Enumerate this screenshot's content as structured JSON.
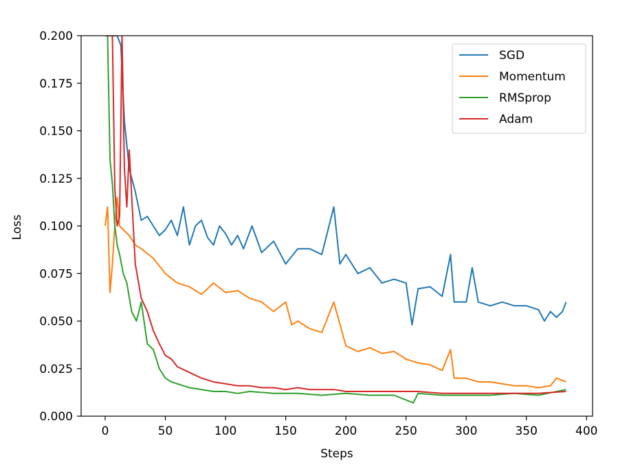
{
  "chart_data": {
    "type": "line",
    "title": "",
    "xlabel": "Steps",
    "ylabel": "Loss",
    "xlim": [
      -20,
      405
    ],
    "ylim": [
      0.0,
      0.2
    ],
    "xticks": [
      0,
      50,
      100,
      150,
      200,
      250,
      300,
      350,
      400
    ],
    "xtick_labels": [
      "0",
      "50",
      "100",
      "150",
      "200",
      "250",
      "300",
      "350",
      "400"
    ],
    "yticks": [
      0.0,
      0.025,
      0.05,
      0.075,
      0.1,
      0.125,
      0.15,
      0.175,
      0.2
    ],
    "ytick_labels": [
      "0.000",
      "0.025",
      "0.050",
      "0.075",
      "0.100",
      "0.125",
      "0.150",
      "0.175",
      "0.200"
    ],
    "grid": false,
    "legend_position": "top-right",
    "series": [
      {
        "name": "SGD",
        "color": "#1f77b4",
        "x": [
          0,
          5,
          10,
          13,
          16,
          20,
          25,
          30,
          35,
          40,
          45,
          50,
          55,
          60,
          65,
          70,
          75,
          80,
          85,
          90,
          95,
          100,
          105,
          110,
          115,
          122,
          130,
          140,
          150,
          160,
          170,
          180,
          190,
          195,
          200,
          210,
          220,
          230,
          240,
          250,
          255,
          260,
          270,
          280,
          287,
          290,
          300,
          305,
          310,
          320,
          330,
          340,
          350,
          360,
          365,
          370,
          375,
          380,
          383
        ],
        "y": [
          0.2,
          0.2,
          0.2,
          0.195,
          0.155,
          0.13,
          0.118,
          0.103,
          0.105,
          0.1,
          0.095,
          0.098,
          0.103,
          0.095,
          0.11,
          0.09,
          0.1,
          0.103,
          0.094,
          0.09,
          0.1,
          0.096,
          0.09,
          0.095,
          0.088,
          0.1,
          0.086,
          0.092,
          0.08,
          0.088,
          0.088,
          0.085,
          0.11,
          0.08,
          0.085,
          0.075,
          0.078,
          0.07,
          0.072,
          0.07,
          0.048,
          0.067,
          0.068,
          0.063,
          0.085,
          0.06,
          0.06,
          0.078,
          0.06,
          0.058,
          0.06,
          0.058,
          0.058,
          0.056,
          0.05,
          0.055,
          0.052,
          0.055,
          0.06
        ]
      },
      {
        "name": "Momentum",
        "color": "#ff7f0e",
        "x": [
          0,
          2,
          4,
          6,
          8,
          10,
          12,
          15,
          20,
          25,
          30,
          40,
          50,
          60,
          70,
          80,
          90,
          100,
          110,
          120,
          130,
          140,
          150,
          155,
          160,
          170,
          180,
          190,
          200,
          210,
          220,
          230,
          240,
          250,
          260,
          270,
          280,
          287,
          290,
          300,
          310,
          320,
          330,
          340,
          350,
          360,
          370,
          375,
          383
        ],
        "y": [
          0.1,
          0.11,
          0.065,
          0.08,
          0.1,
          0.115,
          0.1,
          0.098,
          0.095,
          0.09,
          0.088,
          0.083,
          0.075,
          0.07,
          0.068,
          0.064,
          0.07,
          0.065,
          0.066,
          0.062,
          0.06,
          0.055,
          0.06,
          0.048,
          0.05,
          0.046,
          0.044,
          0.06,
          0.037,
          0.034,
          0.036,
          0.033,
          0.034,
          0.03,
          0.028,
          0.027,
          0.024,
          0.035,
          0.02,
          0.02,
          0.018,
          0.018,
          0.017,
          0.016,
          0.016,
          0.015,
          0.016,
          0.02,
          0.018
        ]
      },
      {
        "name": "RMSprop",
        "color": "#2ca02c",
        "x": [
          0,
          2,
          4,
          6,
          8,
          10,
          12,
          15,
          18,
          22,
          26,
          30,
          35,
          40,
          45,
          50,
          55,
          60,
          65,
          70,
          80,
          90,
          100,
          110,
          120,
          140,
          160,
          180,
          200,
          220,
          240,
          256,
          260,
          280,
          300,
          320,
          340,
          360,
          383
        ],
        "y": [
          0.2,
          0.2,
          0.135,
          0.122,
          0.1,
          0.09,
          0.085,
          0.075,
          0.07,
          0.055,
          0.05,
          0.06,
          0.038,
          0.035,
          0.025,
          0.02,
          0.018,
          0.017,
          0.016,
          0.015,
          0.014,
          0.013,
          0.013,
          0.012,
          0.013,
          0.012,
          0.012,
          0.011,
          0.012,
          0.011,
          0.011,
          0.007,
          0.012,
          0.011,
          0.011,
          0.011,
          0.012,
          0.011,
          0.014
        ]
      },
      {
        "name": "Adam",
        "color": "#d62728",
        "x": [
          0,
          3,
          6,
          8,
          10,
          12,
          14,
          16,
          18,
          20,
          25,
          30,
          35,
          40,
          45,
          50,
          55,
          60,
          70,
          80,
          90,
          100,
          110,
          120,
          130,
          140,
          150,
          160,
          170,
          180,
          190,
          200,
          220,
          240,
          260,
          280,
          300,
          320,
          340,
          360,
          383
        ],
        "y": [
          0.2,
          0.2,
          0.2,
          0.12,
          0.1,
          0.105,
          0.2,
          0.13,
          0.11,
          0.14,
          0.08,
          0.062,
          0.055,
          0.045,
          0.038,
          0.032,
          0.03,
          0.026,
          0.023,
          0.02,
          0.018,
          0.017,
          0.016,
          0.016,
          0.015,
          0.015,
          0.014,
          0.015,
          0.014,
          0.014,
          0.014,
          0.013,
          0.013,
          0.013,
          0.013,
          0.012,
          0.012,
          0.012,
          0.012,
          0.012,
          0.013
        ]
      }
    ]
  }
}
